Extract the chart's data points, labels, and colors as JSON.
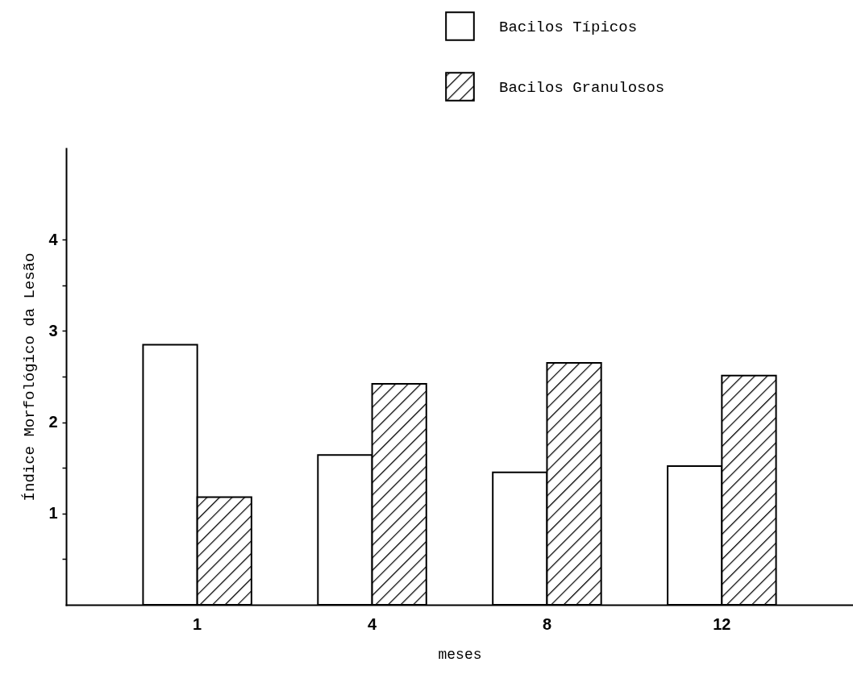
{
  "chart_data": {
    "type": "bar",
    "xlabel": "meses",
    "ylabel": "Índice Morfológico da Lesão",
    "categories": [
      "1",
      "4",
      "8",
      "12"
    ],
    "series": [
      {
        "name": "Bacilos Típicos",
        "color": "#ffffff",
        "values": [
          2.85,
          1.64,
          1.45,
          1.52
        ]
      },
      {
        "name": "Bacilos Granulosos",
        "color": "#000000",
        "values": [
          1.18,
          2.42,
          2.65,
          2.51
        ]
      }
    ],
    "ylim": [
      0,
      5
    ],
    "yticks": [
      {
        "value": 0.5,
        "label": null
      },
      1,
      {
        "value": 1.5,
        "label": null
      },
      2,
      {
        "value": 2.5,
        "label": null
      },
      3,
      {
        "value": 3.5,
        "label": null
      },
      4
    ],
    "legend": "top",
    "grid": false
  }
}
